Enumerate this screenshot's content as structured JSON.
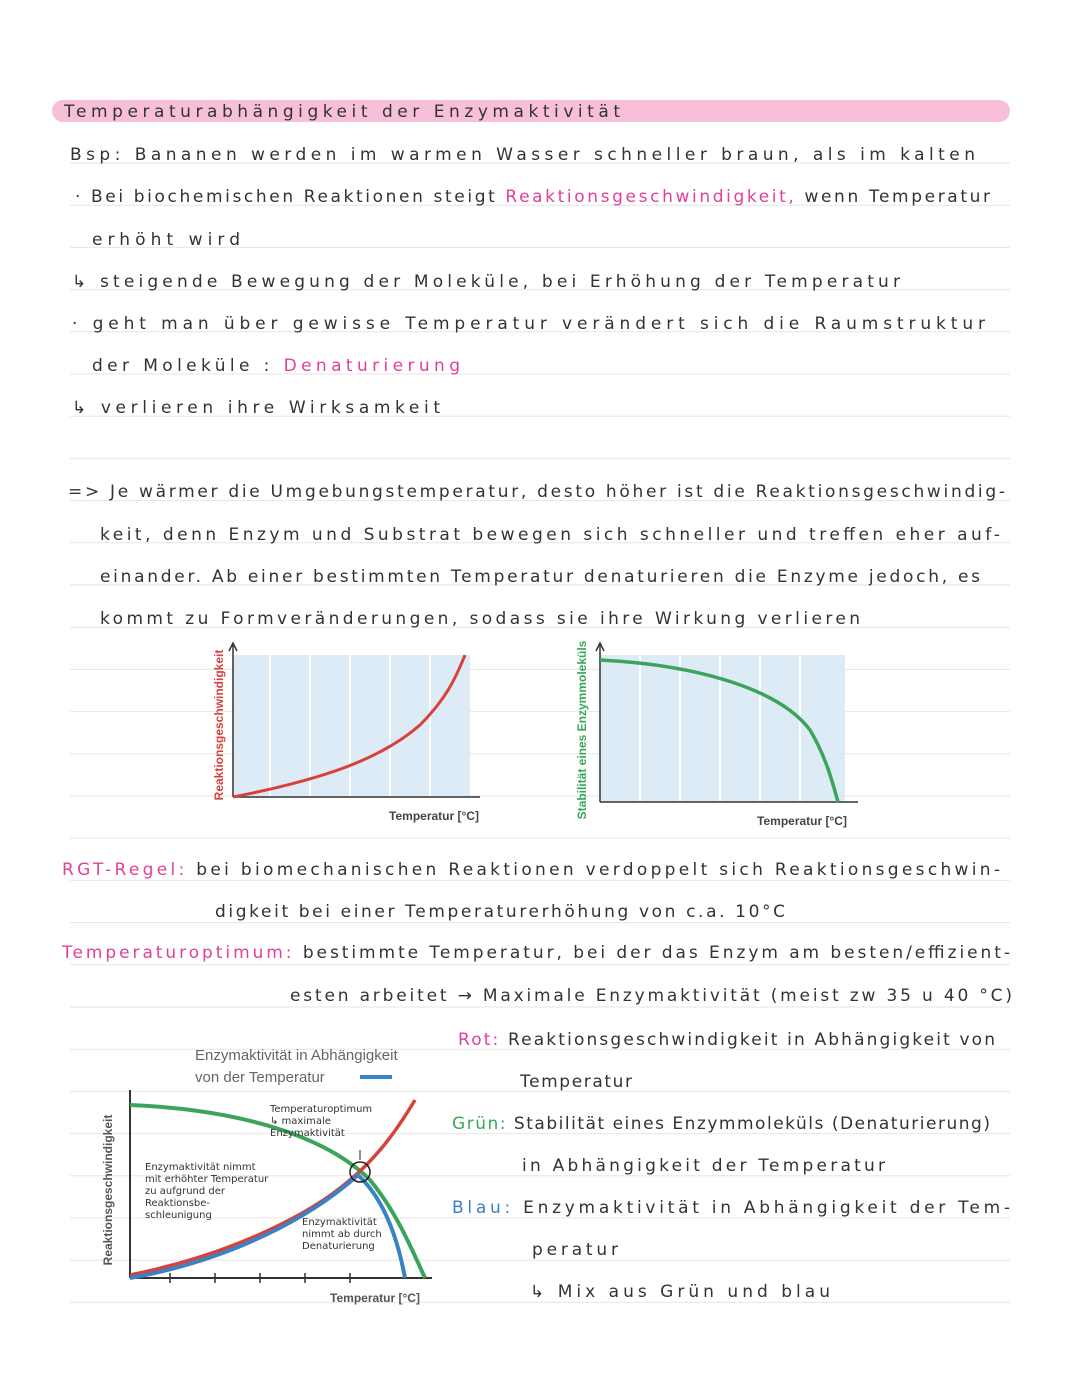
{
  "header": {
    "title": "Temperaturabhängigkeit der Enzymaktivität"
  },
  "notes": [
    [
      {
        "text": "Bsp: Bananen werden im warmen Wasser schneller braun, als im kalten"
      }
    ],
    [
      {
        "text": "· Bei biochemischen Reaktionen steigt "
      },
      {
        "text": "Reaktionsgeschwindigkeit,",
        "color": "#e0409a"
      },
      {
        "text": " wenn Temperatur"
      }
    ],
    [
      {
        "text": "erhöht wird"
      }
    ],
    [
      {
        "text": "↳ steigende Bewegung der Moleküle, bei Erhöhung der Temperatur"
      }
    ],
    [
      {
        "text": "· geht man über gewisse Temperatur verändert sich die Raumstruktur"
      }
    ],
    [
      {
        "text": "der Moleküle :  "
      },
      {
        "text": "Denaturierung",
        "color": "#e0409a"
      }
    ],
    [
      {
        "text": "↳ verlieren ihre Wirksamkeit"
      }
    ],
    [
      {
        "text": "=> Je wärmer die Umgebungstemperatur, desto höher ist die Reaktionsgeschwindig-"
      }
    ],
    [
      {
        "text": "keit, denn Enzym und Substrat bewegen sich schneller und treffen eher auf-"
      }
    ],
    [
      {
        "text": "einander. Ab einer bestimmten Temperatur denaturieren die Enzyme jedoch, es"
      }
    ],
    [
      {
        "text": "kommt zu Formveränderungen, sodass sie ihre Wirkung verlieren"
      }
    ],
    [
      {
        "text": "RGT-Regel: ",
        "color": "#e0409a"
      },
      {
        "text": "bei biomechanischen Reaktionen verdoppelt sich Reaktionsgeschwin-"
      }
    ],
    [
      {
        "text": "digkeit bei einer Temperaturerhöhung von c.a. 10°C"
      }
    ],
    [
      {
        "text": "Temperaturoptimum: ",
        "color": "#e0409a"
      },
      {
        "text": "bestimmte Temperatur, bei der das Enzym am besten/effizient-"
      }
    ],
    [
      {
        "text": "esten arbeitet → Maximale Enzymaktivität (meist zw 35 u 40 °C)"
      }
    ],
    [
      {
        "text": "Rot: ",
        "color": "#e0409a"
      },
      {
        "text": "Reaktionsgeschwindigkeit in Abhängigkeit von"
      }
    ],
    [
      {
        "text": "Temperatur"
      }
    ],
    [
      {
        "text": "Grün: ",
        "color": "#3aa55a"
      },
      {
        "text": "Stabilität eines Enzymmoleküls (Denaturierung)"
      }
    ],
    [
      {
        "text": "in Abhängigkeit der Temperatur"
      }
    ],
    [
      {
        "text": "Blau: ",
        "color": "#3b82c4"
      },
      {
        "text": "Enzymaktivität in Abhängigkeit der Tem-"
      }
    ],
    [
      {
        "text": "peratur"
      }
    ],
    [
      {
        "text": "↳ Mix aus Grün und blau"
      }
    ]
  ],
  "figures": [
    {
      "y_label": "Reaktionsgeschwindigkeit",
      "x_label": "Temperatur [°C]"
    },
    {
      "y_label": "Stabilität eines Enzymmoleküls",
      "x_label": "Temperatur [°C]"
    },
    {
      "title": [
        "Enzymaktivität in Abhängigkeit",
        "von der Temperatur"
      ],
      "y_label": "Reaktionsgeschwindigkeit",
      "x_label": "Temperatur [°C]",
      "annotations": [
        [
          "Temperaturoptimum",
          "↳ maximale",
          "Enzymaktivität"
        ],
        [
          "Enzymaktivität nimmt",
          "mit erhöhter Temperatur",
          "zu aufgrund der",
          "Reaktionsbe-",
          "schleunigung"
        ],
        [
          "Enzymaktivität",
          "nimmt ab durch",
          "Denaturierung"
        ]
      ]
    }
  ]
}
